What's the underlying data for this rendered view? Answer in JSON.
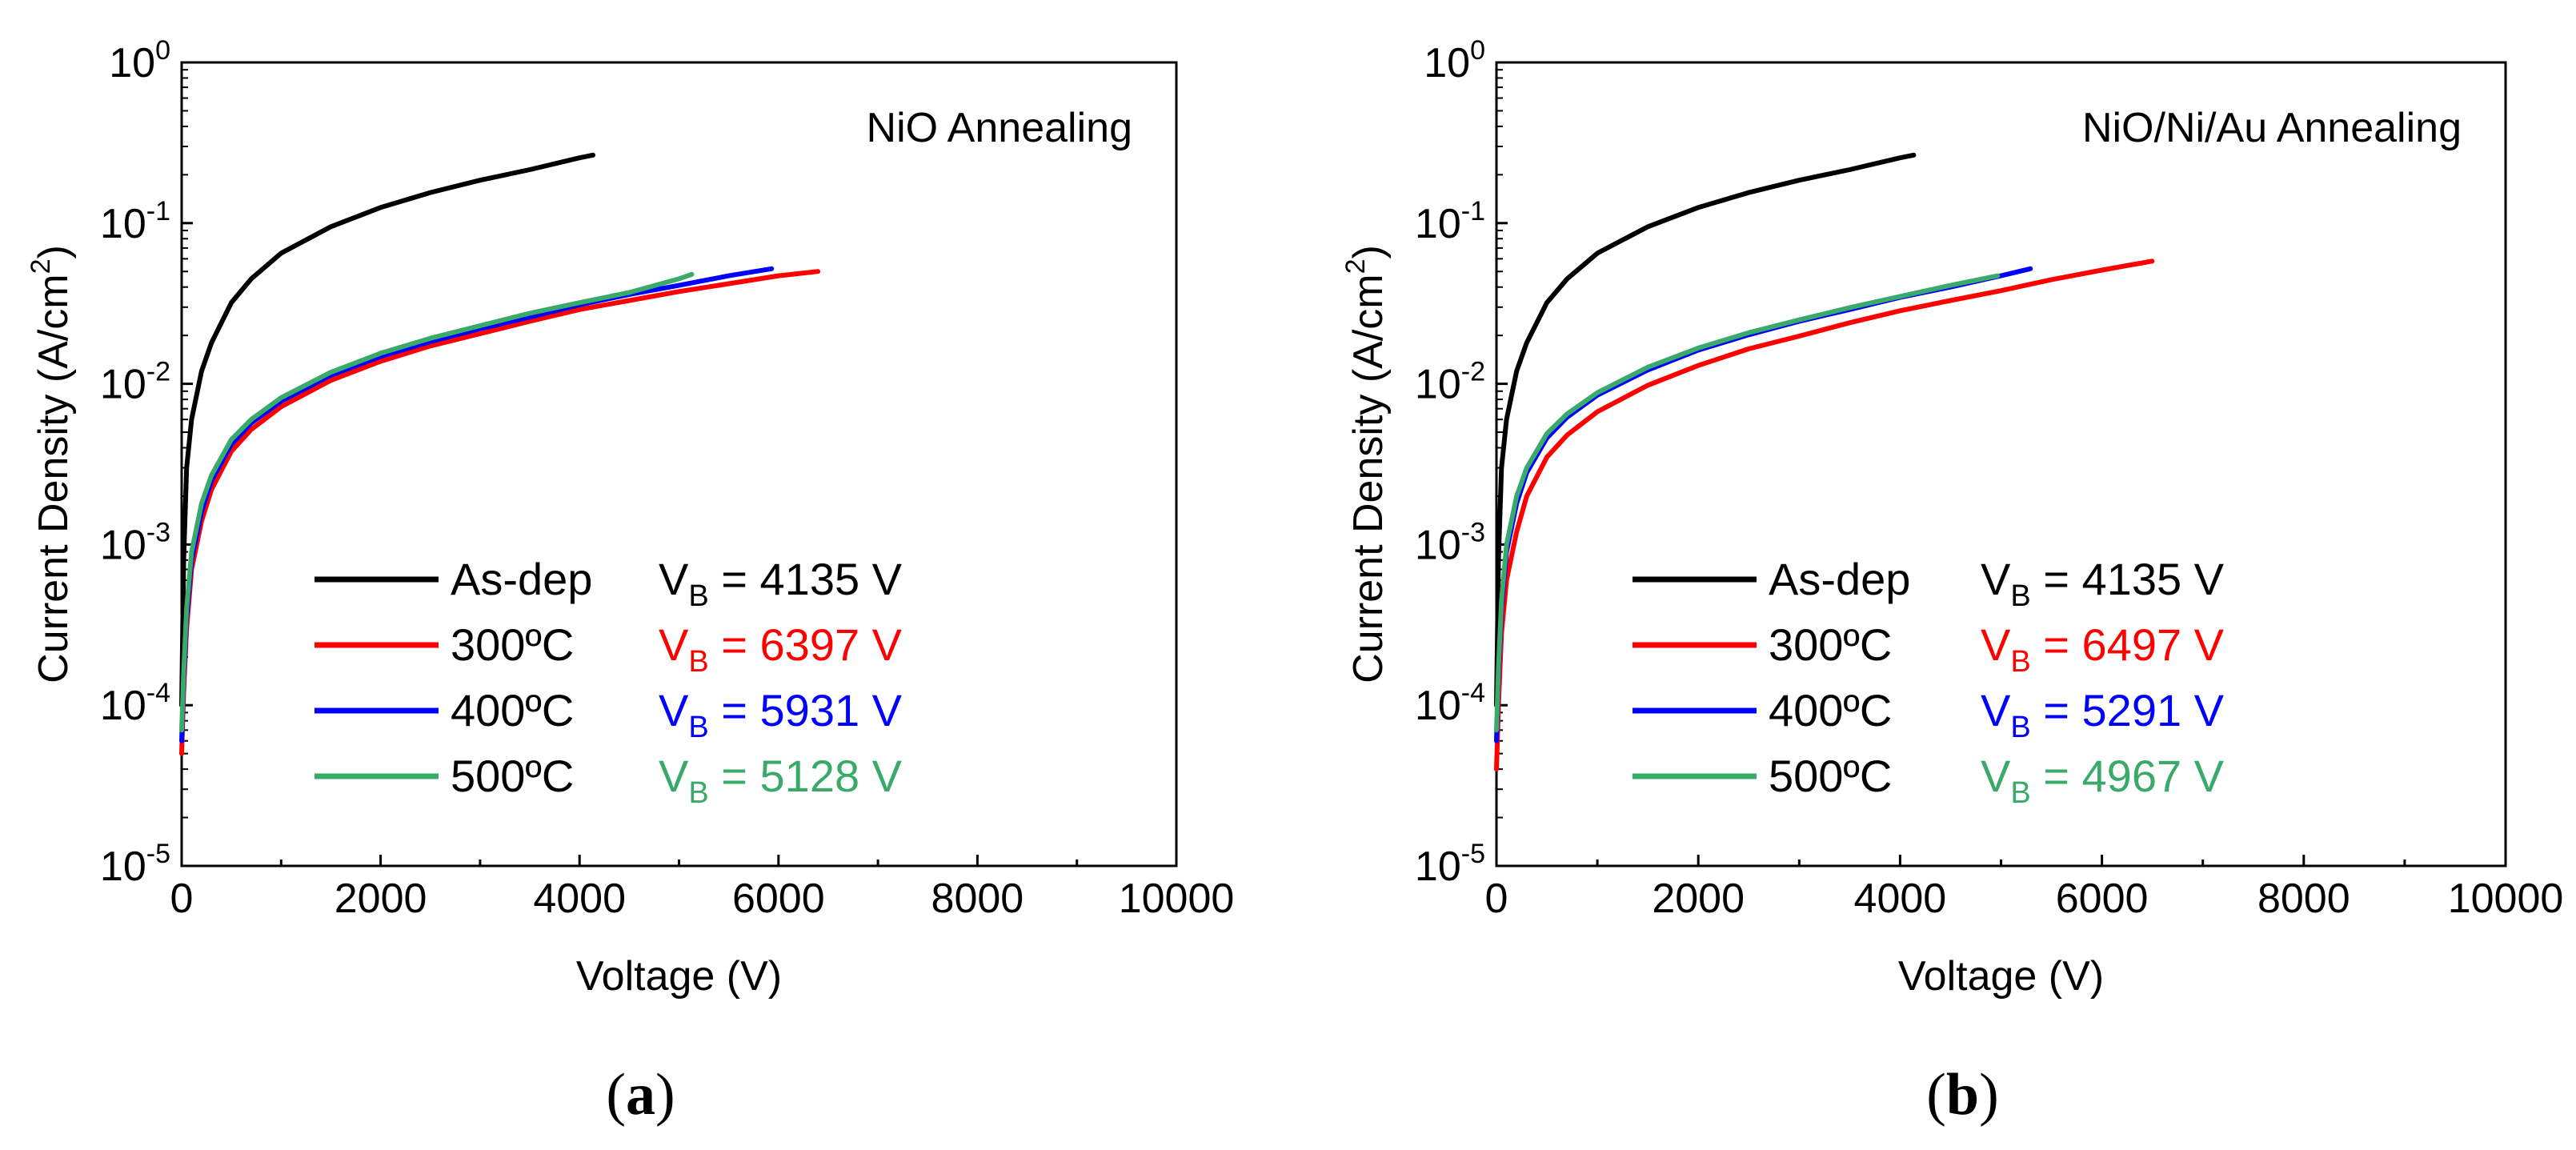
{
  "chart_data": [
    {
      "type": "line",
      "panel_label": "(a)",
      "panel_letter": "a",
      "annotation": "NiO Annealing",
      "xlabel": "Voltage (V)",
      "ylabel_main": "Current Density (A/cm",
      "ylabel_sup": "2",
      "ylabel_end": ")",
      "xlim": [
        0,
        10000
      ],
      "ylim": [
        1e-05,
        1
      ],
      "yscale": "log",
      "xticks": [
        0,
        2000,
        4000,
        6000,
        8000,
        10000
      ],
      "xtick_labels": [
        "0",
        "2000",
        "4000",
        "6000",
        "8000",
        "10000"
      ],
      "yticks": [
        {
          "value": 1e-05,
          "base": "10",
          "exp": "-5"
        },
        {
          "value": 0.0001,
          "base": "10",
          "exp": "-4"
        },
        {
          "value": 0.001,
          "base": "10",
          "exp": "-3"
        },
        {
          "value": 0.01,
          "base": "10",
          "exp": "-2"
        },
        {
          "value": 0.1,
          "base": "10",
          "exp": "-1"
        },
        {
          "value": 1,
          "base": "10",
          "exp": "0"
        }
      ],
      "series": [
        {
          "name": "As-dep",
          "color": "#000000",
          "vb_prefix": "V",
          "vb_sub": "B",
          "vb_text": " = 4135 V",
          "vb_color": "#000000",
          "x": [
            0,
            20,
            50,
            100,
            200,
            300,
            500,
            700,
            1000,
            1500,
            2000,
            2500,
            3000,
            3500,
            4000,
            4135
          ],
          "y": [
            0.0001,
            0.0008,
            0.003,
            0.006,
            0.012,
            0.018,
            0.032,
            0.045,
            0.065,
            0.095,
            0.125,
            0.155,
            0.185,
            0.215,
            0.255,
            0.265
          ]
        },
        {
          "name": "300ºC",
          "color": "#ff0000",
          "vb_prefix": "V",
          "vb_sub": "B",
          "vb_text": " = 6397 V",
          "vb_color": "#ff0000",
          "x": [
            0,
            20,
            50,
            100,
            200,
            300,
            500,
            700,
            1000,
            1500,
            2000,
            2500,
            3000,
            3500,
            4000,
            4500,
            5000,
            5500,
            6000,
            6397
          ],
          "y": [
            5e-05,
            0.00012,
            0.0003,
            0.0007,
            0.0014,
            0.0022,
            0.0038,
            0.0052,
            0.0072,
            0.0105,
            0.0138,
            0.0172,
            0.0205,
            0.0245,
            0.029,
            0.033,
            0.0375,
            0.042,
            0.047,
            0.05
          ]
        },
        {
          "name": "400ºC",
          "color": "#0000ff",
          "vb_prefix": "V",
          "vb_sub": "B",
          "vb_text": " = 5931 V",
          "vb_color": "#0000ff",
          "x": [
            0,
            20,
            50,
            100,
            200,
            300,
            500,
            700,
            1000,
            1500,
            2000,
            2500,
            3000,
            3500,
            4000,
            4500,
            5000,
            5500,
            5931
          ],
          "y": [
            6e-05,
            0.00014,
            0.00035,
            0.0008,
            0.0016,
            0.0025,
            0.0042,
            0.0057,
            0.0078,
            0.0113,
            0.0148,
            0.0183,
            0.022,
            0.026,
            0.031,
            0.036,
            0.041,
            0.047,
            0.052
          ]
        },
        {
          "name": "500ºC",
          "color": "#3aaa6a",
          "vb_prefix": "V",
          "vb_sub": "B",
          "vb_text": " = 5128 V",
          "vb_color": "#3aaa6a",
          "x": [
            0,
            20,
            50,
            100,
            200,
            300,
            500,
            700,
            1000,
            1500,
            2000,
            2500,
            3000,
            3500,
            4000,
            4500,
            5000,
            5128
          ],
          "y": [
            7e-05,
            0.00016,
            0.0004,
            0.0009,
            0.0018,
            0.0027,
            0.0045,
            0.006,
            0.0082,
            0.0118,
            0.0155,
            0.0192,
            0.023,
            0.0275,
            0.032,
            0.037,
            0.045,
            0.048
          ]
        }
      ]
    },
    {
      "type": "line",
      "panel_label": "(b)",
      "panel_letter": "b",
      "annotation": "NiO/Ni/Au Annealing",
      "xlabel": "Voltage (V)",
      "ylabel_main": "Current Density (A/cm",
      "ylabel_sup": "2",
      "ylabel_end": ")",
      "xlim": [
        0,
        10000
      ],
      "ylim": [
        1e-05,
        1
      ],
      "yscale": "log",
      "xticks": [
        0,
        2000,
        4000,
        6000,
        8000,
        10000
      ],
      "xtick_labels": [
        "0",
        "2000",
        "4000",
        "6000",
        "8000",
        "10000"
      ],
      "yticks": [
        {
          "value": 1e-05,
          "base": "10",
          "exp": "-5"
        },
        {
          "value": 0.0001,
          "base": "10",
          "exp": "-4"
        },
        {
          "value": 0.001,
          "base": "10",
          "exp": "-3"
        },
        {
          "value": 0.01,
          "base": "10",
          "exp": "-2"
        },
        {
          "value": 0.1,
          "base": "10",
          "exp": "-1"
        },
        {
          "value": 1,
          "base": "10",
          "exp": "0"
        }
      ],
      "series": [
        {
          "name": "As-dep",
          "color": "#000000",
          "vb_prefix": "V",
          "vb_sub": "B",
          "vb_text": " = 4135 V",
          "vb_color": "#000000",
          "x": [
            0,
            20,
            50,
            100,
            200,
            300,
            500,
            700,
            1000,
            1500,
            2000,
            2500,
            3000,
            3500,
            4000,
            4135
          ],
          "y": [
            0.0001,
            0.0008,
            0.003,
            0.006,
            0.012,
            0.018,
            0.032,
            0.045,
            0.065,
            0.095,
            0.125,
            0.155,
            0.185,
            0.215,
            0.255,
            0.265
          ]
        },
        {
          "name": "300ºC",
          "color": "#ff0000",
          "vb_prefix": "V",
          "vb_sub": "B",
          "vb_text": " = 6497 V",
          "vb_color": "#ff0000",
          "x": [
            0,
            20,
            50,
            100,
            200,
            300,
            500,
            700,
            1000,
            1500,
            2000,
            2500,
            3000,
            3500,
            4000,
            4500,
            5000,
            5500,
            6000,
            6497
          ],
          "y": [
            4e-05,
            0.0001,
            0.00028,
            0.0006,
            0.0012,
            0.002,
            0.0035,
            0.0048,
            0.0067,
            0.0098,
            0.013,
            0.0165,
            0.0198,
            0.024,
            0.0285,
            0.033,
            0.038,
            0.0445,
            0.051,
            0.058
          ]
        },
        {
          "name": "400ºC",
          "color": "#0000ff",
          "vb_prefix": "V",
          "vb_sub": "B",
          "vb_text": " = 5291 V",
          "vb_color": "#0000ff",
          "x": [
            0,
            20,
            50,
            100,
            200,
            300,
            500,
            700,
            1000,
            1500,
            2000,
            2500,
            3000,
            3500,
            4000,
            4500,
            5000,
            5291
          ],
          "y": [
            6e-05,
            0.00015,
            0.0004,
            0.0009,
            0.0018,
            0.0028,
            0.0046,
            0.0062,
            0.0085,
            0.0122,
            0.0162,
            0.0202,
            0.0245,
            0.029,
            0.0345,
            0.04,
            0.047,
            0.052
          ]
        },
        {
          "name": "500ºC",
          "color": "#3aaa6a",
          "vb_prefix": "V",
          "vb_sub": "B",
          "vb_text": " = 4967 V",
          "vb_color": "#3aaa6a",
          "x": [
            0,
            20,
            50,
            100,
            200,
            300,
            500,
            700,
            1000,
            1500,
            2000,
            2500,
            3000,
            3500,
            4000,
            4500,
            4967
          ],
          "y": [
            7e-05,
            0.00017,
            0.00045,
            0.001,
            0.002,
            0.003,
            0.0049,
            0.0065,
            0.0088,
            0.0127,
            0.0167,
            0.0208,
            0.025,
            0.0298,
            0.035,
            0.041,
            0.047
          ]
        }
      ]
    }
  ]
}
